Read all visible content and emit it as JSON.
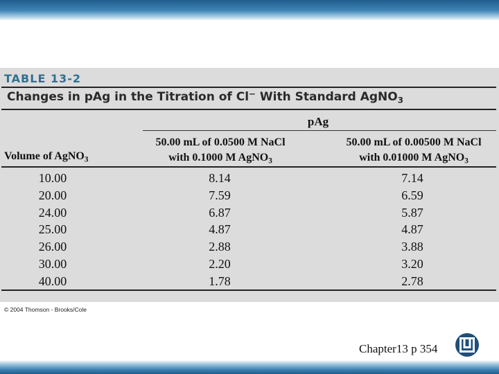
{
  "table": {
    "label": "TABLE 13-2",
    "title_prefix": "Changes in pAg in the Titration of Cl",
    "title_sup": "−",
    "title_mid": " With Standard AgNO",
    "title_sub": "3",
    "group_header": "pAg",
    "col1_header_line1": "50.00 mL of 0.0500 M NaCl",
    "col1_header_line2_prefix": "with 0.1000 M AgNO",
    "col1_header_line2_sub": "3",
    "col2_header_line1": "50.00 mL of 0.00500 M NaCl",
    "col2_header_line2_prefix": "with 0.01000 M AgNO",
    "col2_header_line2_sub": "3",
    "row_header_prefix": "Volume of AgNO",
    "row_header_sub": "3",
    "rows": [
      [
        "10.00",
        "8.14",
        "7.14"
      ],
      [
        "20.00",
        "7.59",
        "6.59"
      ],
      [
        "24.00",
        "6.87",
        "5.87"
      ],
      [
        "25.00",
        "4.87",
        "4.87"
      ],
      [
        "26.00",
        "2.88",
        "3.88"
      ],
      [
        "30.00",
        "2.20",
        "3.20"
      ],
      [
        "40.00",
        "1.78",
        "2.78"
      ]
    ]
  },
  "copyright": "© 2004 Thomson - Brooks/Cole",
  "caption": "Chapter13 p 354",
  "logo_icon": "university-logo-icon",
  "colors": {
    "band_blue": "#1f5d8c",
    "label_teal": "#31708f",
    "panel_gray": "#dcdcdc"
  }
}
